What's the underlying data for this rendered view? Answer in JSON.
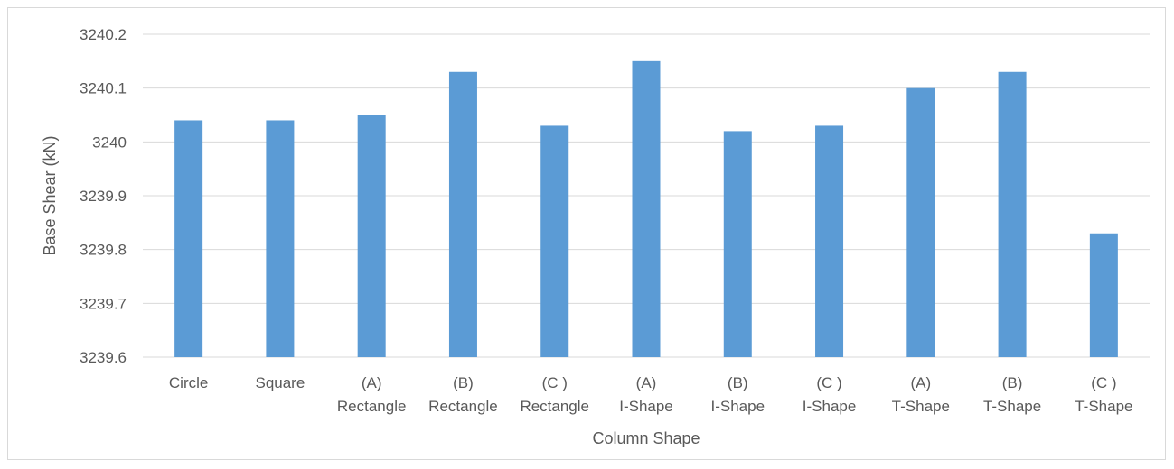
{
  "chart_data": {
    "type": "bar",
    "title": "",
    "xlabel": "Column Shape",
    "ylabel": "Base Shear (kN)",
    "ylim": [
      3239.6,
      3240.2
    ],
    "yticks": [
      "3239.6",
      "3239.7",
      "3239.8",
      "3239.9",
      "3240",
      "3240.1",
      "3240.2"
    ],
    "grid": true,
    "legend": "none",
    "bar_color": "#5b9bd5",
    "categories": [
      [
        "Circle"
      ],
      [
        "Square"
      ],
      [
        "(A)",
        "Rectangle"
      ],
      [
        "(B)",
        "Rectangle"
      ],
      [
        "(C )",
        "Rectangle"
      ],
      [
        "(A)",
        "I-Shape"
      ],
      [
        "(B)",
        "I-Shape"
      ],
      [
        "(C )",
        "I-Shape"
      ],
      [
        "(A)",
        "T-Shape"
      ],
      [
        "(B)",
        "T-Shape"
      ],
      [
        "(C )",
        "T-Shape"
      ]
    ],
    "values": [
      3240.04,
      3240.04,
      3240.05,
      3240.13,
      3240.03,
      3240.15,
      3240.02,
      3240.03,
      3240.1,
      3240.13,
      3239.83
    ]
  }
}
